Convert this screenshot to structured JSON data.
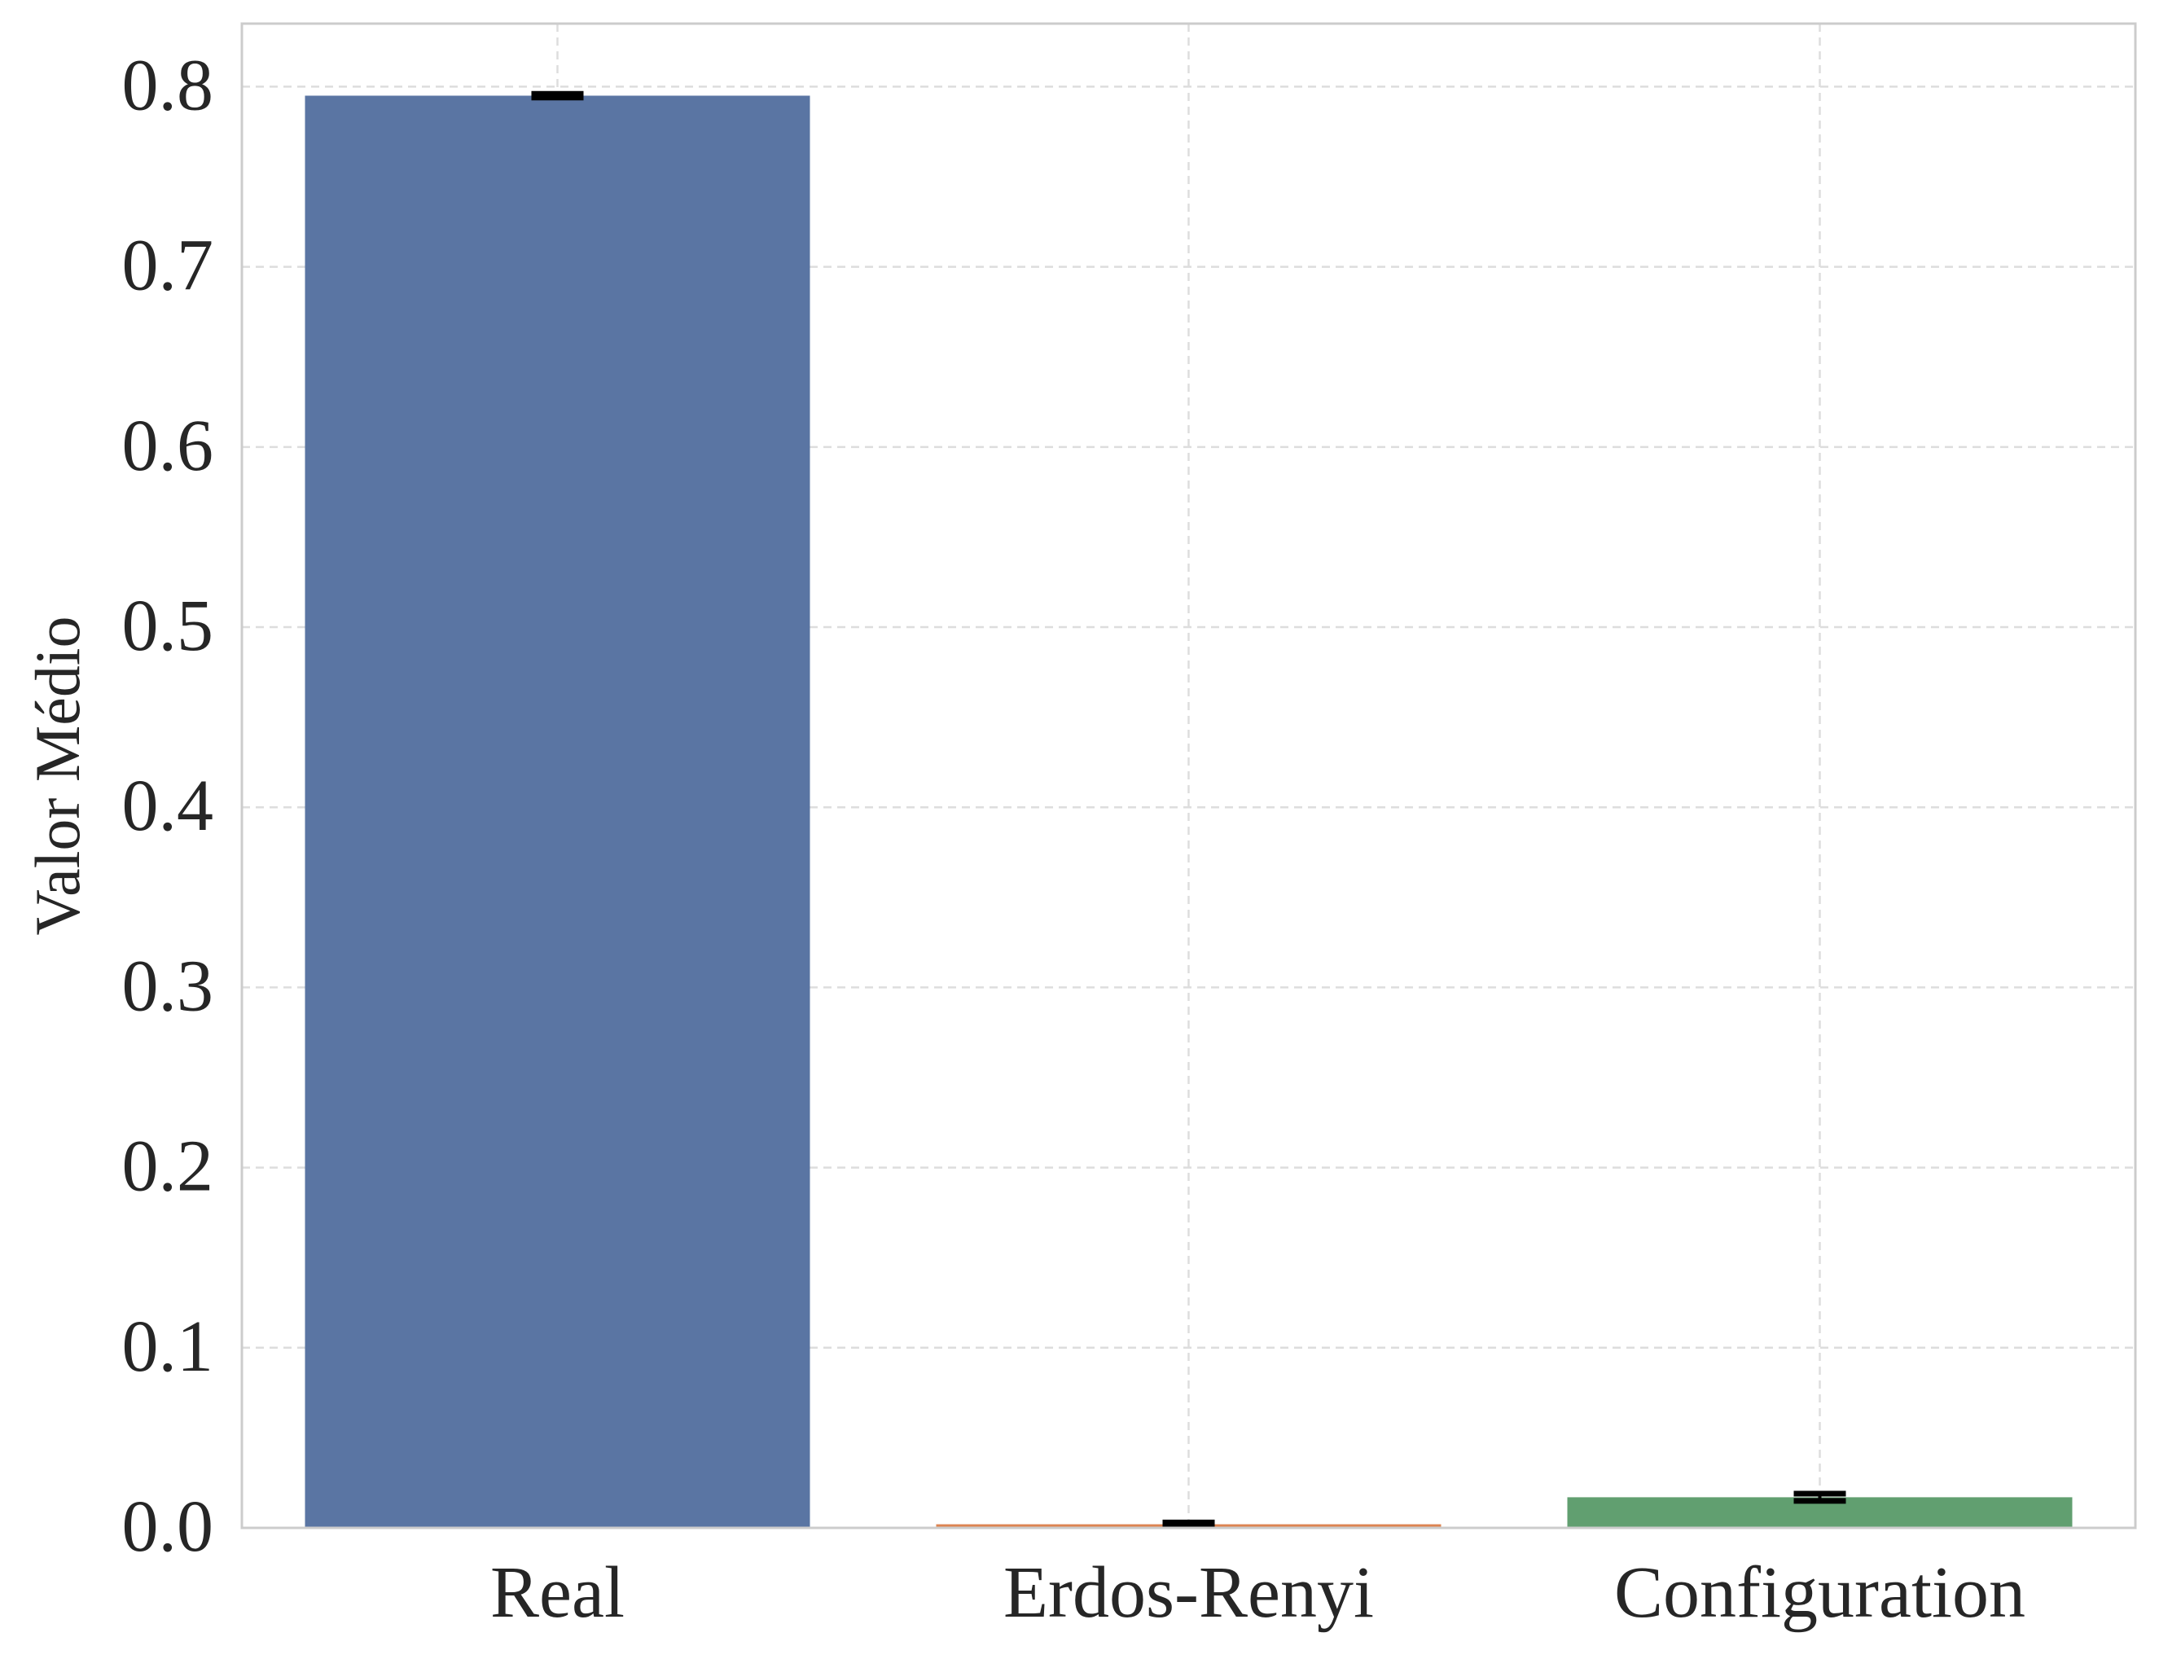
{
  "chart_data": {
    "type": "bar",
    "categories": [
      "Real",
      "Erdos-Renyi",
      "Configuration"
    ],
    "values": [
      0.795,
      0.002,
      0.017
    ],
    "errors": [
      0.001,
      0.001,
      0.002
    ],
    "ylabel": "Valor Médio",
    "xlabel": "",
    "ylim": [
      0,
      0.835
    ],
    "yticks": [
      "0.0",
      "0.1",
      "0.2",
      "0.3",
      "0.4",
      "0.5",
      "0.6",
      "0.7",
      "0.8"
    ],
    "colors": [
      "#5a75a3",
      "#dd8452",
      "#619f70"
    ],
    "errorbar_color": "#000000",
    "grid": true,
    "grid_style": "dashed",
    "legend": "none"
  }
}
